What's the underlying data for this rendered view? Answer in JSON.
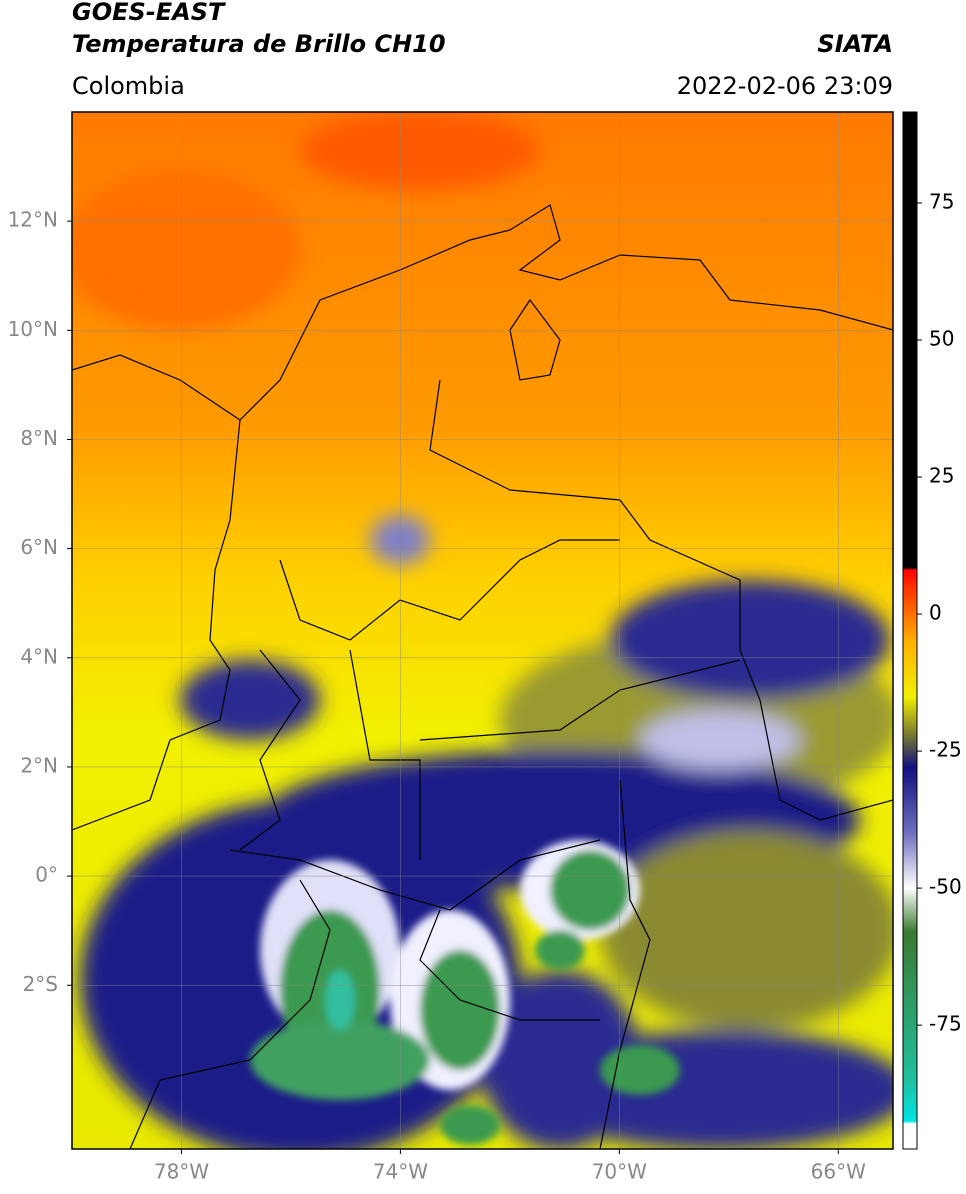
{
  "header": {
    "title": "GOES-EAST",
    "subtitle": "Temperatura de Brillo CH10",
    "source": "SIATA",
    "region": "Colombia",
    "datetime": "2022-02-06 23:09"
  },
  "map": {
    "lon_range": [
      -80,
      -65
    ],
    "lat_range": [
      -5,
      14
    ],
    "lon_ticks": [
      {
        "value": -78,
        "label": "78°W"
      },
      {
        "value": -74,
        "label": "74°W"
      },
      {
        "value": -70,
        "label": "70°W"
      },
      {
        "value": -66,
        "label": "66°W"
      }
    ],
    "lat_ticks": [
      {
        "value": 12,
        "label": "12°N"
      },
      {
        "value": 10,
        "label": "10°N"
      },
      {
        "value": 8,
        "label": "8°N"
      },
      {
        "value": 6,
        "label": "6°N"
      },
      {
        "value": 4,
        "label": "4°N"
      },
      {
        "value": 2,
        "label": "2°N"
      },
      {
        "value": 0,
        "label": "0°"
      },
      {
        "value": -2,
        "label": "2°S"
      }
    ],
    "grid": true
  },
  "colorbar": {
    "range": [
      -97.6,
      91.6
    ],
    "ticks": [
      75,
      50,
      25,
      0,
      -25,
      -50,
      -75
    ],
    "colormap": [
      {
        "value": -97.6,
        "color": "#ffffff"
      },
      {
        "value": -93,
        "color": "#ffffff"
      },
      {
        "value": -92.5,
        "color": "#00e5e5"
      },
      {
        "value": -85,
        "color": "#20c0a0"
      },
      {
        "value": -70,
        "color": "#2f9a60"
      },
      {
        "value": -58,
        "color": "#3a7a30"
      },
      {
        "value": -50,
        "color": "#ffffff"
      },
      {
        "value": -40,
        "color": "#7070c0"
      },
      {
        "value": -28,
        "color": "#101080"
      },
      {
        "value": -22,
        "color": "#7a7a30"
      },
      {
        "value": -15,
        "color": "#f0f000"
      },
      {
        "value": -5,
        "color": "#ffb000"
      },
      {
        "value": 5,
        "color": "#ff3000"
      },
      {
        "value": 8,
        "color": "#ff0000"
      },
      {
        "value": 8.5,
        "color": "#000000"
      },
      {
        "value": 91.6,
        "color": "#000000"
      }
    ]
  }
}
